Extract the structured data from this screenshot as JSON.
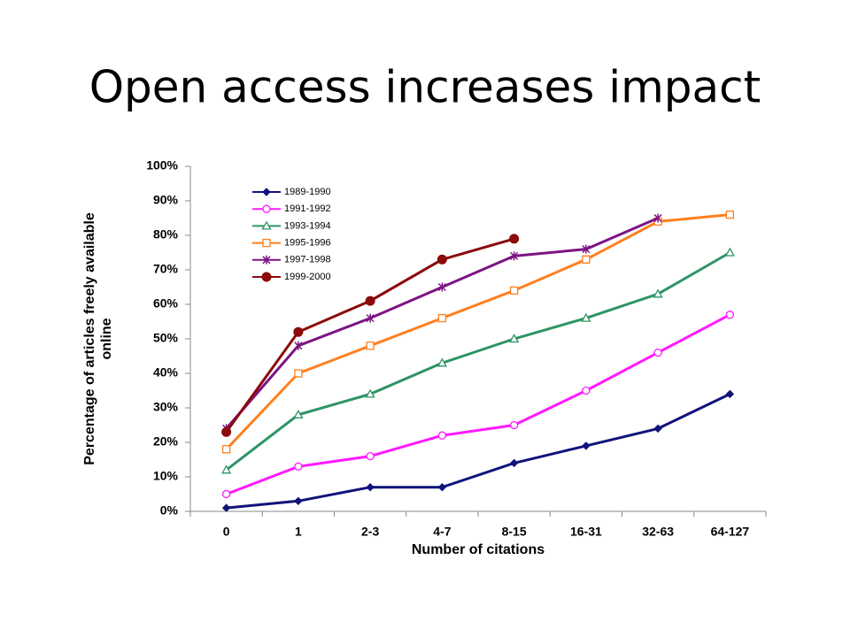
{
  "slide_title": "Open access increases impact",
  "chart_data": {
    "type": "line",
    "xlabel": "Number of citations",
    "ylabel_lines": [
      "Percentage of articles freely available",
      "online"
    ],
    "categories": [
      "0",
      "1",
      "2-3",
      "4-7",
      "8-15",
      "16-31",
      "32-63",
      "64-127"
    ],
    "ylim": [
      0,
      100
    ],
    "yticks": [
      {
        "value": 0,
        "label": "0%"
      },
      {
        "value": 10,
        "label": "10%"
      },
      {
        "value": 20,
        "label": "20%"
      },
      {
        "value": 30,
        "label": "30%"
      },
      {
        "value": 40,
        "label": "40%"
      },
      {
        "value": 50,
        "label": "50%"
      },
      {
        "value": 60,
        "label": "60%"
      },
      {
        "value": 70,
        "label": "70%"
      },
      {
        "value": 80,
        "label": "80%"
      },
      {
        "value": 90,
        "label": "90%"
      },
      {
        "value": 100,
        "label": "100%"
      }
    ],
    "legend": "upper left",
    "series": [
      {
        "name": "1989-1990",
        "color": "#10137a",
        "marker": "diamond",
        "values": [
          1,
          3,
          7,
          7,
          14,
          19,
          24,
          34
        ]
      },
      {
        "name": "1991-1992",
        "color": "#ff1aff",
        "marker": "circle",
        "values": [
          5,
          13,
          16,
          22,
          25,
          35,
          46,
          57
        ]
      },
      {
        "name": "1993-1994",
        "color": "#2e9464",
        "marker": "triangle",
        "values": [
          12,
          28,
          34,
          43,
          50,
          56,
          63,
          75
        ]
      },
      {
        "name": "1995-1996",
        "color": "#ff7f1e",
        "marker": "square",
        "values": [
          18,
          40,
          48,
          56,
          64,
          73,
          84,
          86
        ]
      },
      {
        "name": "1997-1998",
        "color": "#7d1485",
        "marker": "star",
        "values": [
          24,
          48,
          56,
          65,
          74,
          76,
          85,
          null
        ]
      },
      {
        "name": "1999-2000",
        "color": "#8b0a0a",
        "marker": "dot",
        "values": [
          23,
          52,
          61,
          73,
          79,
          null,
          null,
          null
        ]
      }
    ]
  }
}
